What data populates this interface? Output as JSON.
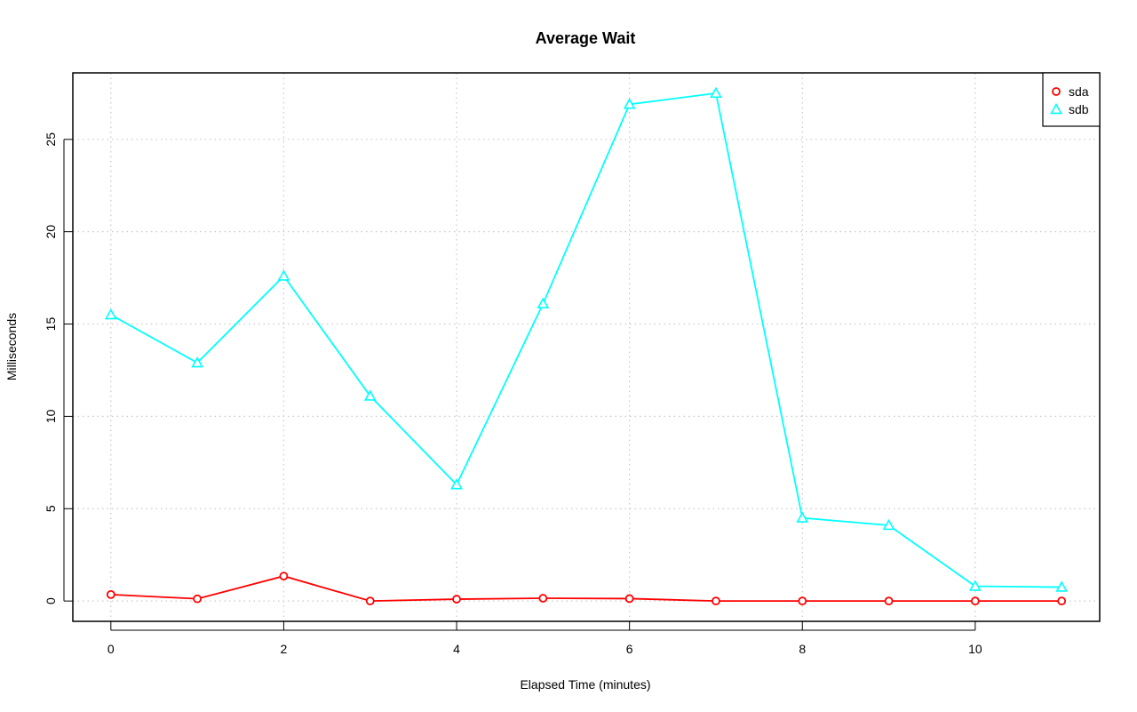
{
  "chart_data": {
    "type": "line",
    "title": "Average Wait",
    "xlabel": "Elapsed Time (minutes)",
    "ylabel": "Milliseconds",
    "x": [
      0,
      1,
      2,
      3,
      4,
      5,
      6,
      7,
      8,
      9,
      10,
      11
    ],
    "xlim": [
      -0.44,
      11.44
    ],
    "ylim": [
      -1.1,
      28.6
    ],
    "xticks": [
      "0",
      "2",
      "4",
      "6",
      "8",
      "10"
    ],
    "yticks": [
      "0",
      "5",
      "10",
      "15",
      "20",
      "25"
    ],
    "grid": true,
    "legend_position": "top-right",
    "series": [
      {
        "name": "sda",
        "color": "#ff0000",
        "marker": "circle",
        "values": [
          0.35,
          0.12,
          1.35,
          0.0,
          0.1,
          0.15,
          0.13,
          0.0,
          0.0,
          0.0,
          0.0,
          0.0
        ]
      },
      {
        "name": "sdb",
        "color": "#00ffff",
        "marker": "triangle",
        "values": [
          15.5,
          12.9,
          17.6,
          11.1,
          6.3,
          16.1,
          26.9,
          27.5,
          4.5,
          4.1,
          0.8,
          0.75
        ]
      }
    ]
  }
}
